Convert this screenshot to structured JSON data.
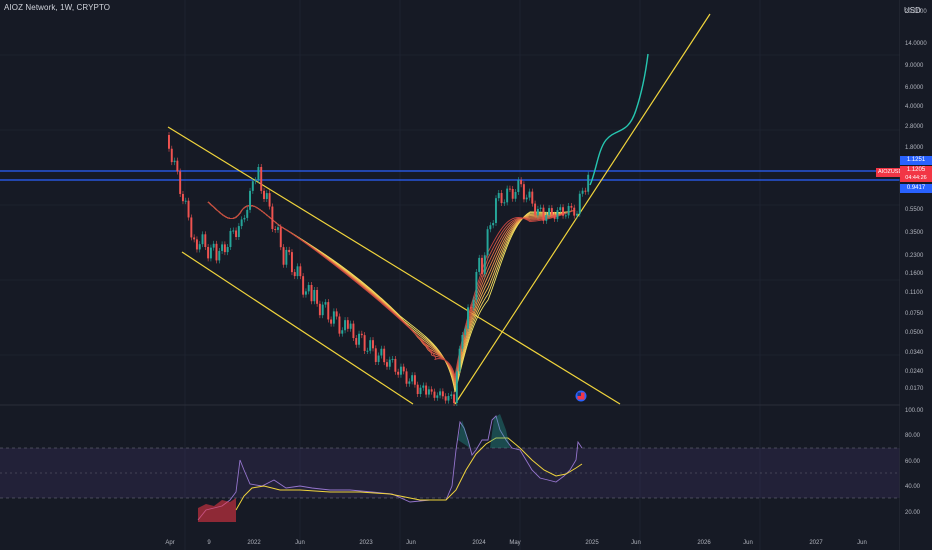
{
  "header": {
    "title": "AIOZ Network, 1W, CRYPTO",
    "currency": "USD"
  },
  "price_axis": {
    "ticks": [
      "20.0000",
      "14.0000",
      "9.0000",
      "6.0000",
      "4.0000",
      "2.8000",
      "1.8000",
      "1.1205",
      "0.9417",
      "0.5500",
      "0.3500",
      "0.2300",
      "0.1600",
      "0.1100",
      "0.0750",
      "0.0500",
      "0.0340",
      "0.0240",
      "0.0170"
    ],
    "plain_ticks": [
      "20.0000",
      "14.0000",
      "9.0000",
      "6.0000",
      "4.0000",
      "2.8000",
      "1.8000",
      "0.5500",
      "0.3500",
      "0.2300",
      "0.1600",
      "0.1100",
      "0.0750",
      "0.0500",
      "0.0340",
      "0.0240",
      "0.0170"
    ],
    "level_upper": "1.1251",
    "level_lower": "0.9417",
    "last_price": "1.1205",
    "countdown": "04:44:26",
    "symbol_tag": "AIOZUSD"
  },
  "oscillator_axis": {
    "ticks": [
      "100.00",
      "80.00",
      "60.00",
      "40.00",
      "20.00"
    ]
  },
  "time_axis": {
    "ticks": [
      "Apr",
      "9",
      "2022",
      "Jun",
      "2023",
      "Jun",
      "2024",
      "May",
      "2025",
      "Jun",
      "2026",
      "Jun",
      "2027",
      "Jun"
    ]
  },
  "colors": {
    "background": "#161a25",
    "channel_lines": "#f0d43c",
    "horizontal_levels": "#2962ff",
    "projection": "#26c6b0",
    "oscillator_band": "#7e57c2",
    "up_candle": "#26a69a",
    "down_candle": "#ef5350"
  }
}
